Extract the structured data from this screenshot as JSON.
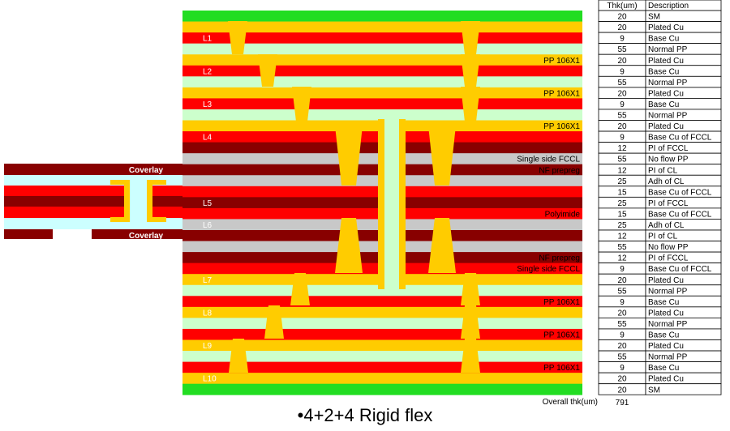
{
  "colors": {
    "sm": "#22dd22",
    "plated": "#ffcc00",
    "base": "#ff0000",
    "pp": "#ccffcc",
    "pi": "#880000",
    "nf": "#c8c8c8",
    "via": "#ffcc00",
    "flex_bg": "#ccffff",
    "grid": "#000000"
  },
  "table": {
    "header_thk": "Thk(um)",
    "header_desc": "Description",
    "rows": [
      {
        "thk": "20",
        "desc": "SM"
      },
      {
        "thk": "20",
        "desc": "Plated Cu"
      },
      {
        "thk": "9",
        "desc": "Base Cu"
      },
      {
        "thk": "55",
        "desc": "Normal PP"
      },
      {
        "thk": "20",
        "desc": "Plated Cu"
      },
      {
        "thk": "9",
        "desc": "Base Cu"
      },
      {
        "thk": "55",
        "desc": "Normal PP"
      },
      {
        "thk": "20",
        "desc": "Plated Cu"
      },
      {
        "thk": "9",
        "desc": "Base Cu"
      },
      {
        "thk": "55",
        "desc": "Normal PP"
      },
      {
        "thk": "20",
        "desc": "Plated Cu"
      },
      {
        "thk": "9",
        "desc": "Base Cu of FCCL"
      },
      {
        "thk": "12",
        "desc": "PI of FCCL"
      },
      {
        "thk": "55",
        "desc": "No flow PP"
      },
      {
        "thk": "12",
        "desc": "PI of CL"
      },
      {
        "thk": "25",
        "desc": "Adh of CL"
      },
      {
        "thk": "15",
        "desc": "Base Cu of FCCL"
      },
      {
        "thk": "25",
        "desc": "PI of FCCL"
      },
      {
        "thk": "15",
        "desc": "Base Cu of FCCL"
      },
      {
        "thk": "25",
        "desc": "Adh of CL"
      },
      {
        "thk": "12",
        "desc": "PI of CL"
      },
      {
        "thk": "55",
        "desc": "No flow PP"
      },
      {
        "thk": "12",
        "desc": "PI of FCCL"
      },
      {
        "thk": "9",
        "desc": "Base Cu of FCCL"
      },
      {
        "thk": "20",
        "desc": "Plated Cu"
      },
      {
        "thk": "55",
        "desc": "Normal PP"
      },
      {
        "thk": "9",
        "desc": "Base Cu"
      },
      {
        "thk": "20",
        "desc": "Plated Cu"
      },
      {
        "thk": "55",
        "desc": "Normal PP"
      },
      {
        "thk": "9",
        "desc": "Base Cu"
      },
      {
        "thk": "20",
        "desc": "Plated Cu"
      },
      {
        "thk": "55",
        "desc": "Normal PP"
      },
      {
        "thk": "9",
        "desc": "Base Cu"
      },
      {
        "thk": "20",
        "desc": "Plated Cu"
      },
      {
        "thk": "20",
        "desc": "SM"
      }
    ],
    "overall_label": "Overall thk(um)",
    "overall_value": "791"
  },
  "layer_labels": [
    {
      "text": "L1",
      "row": 2
    },
    {
      "text": "L2",
      "row": 5
    },
    {
      "text": "L3",
      "row": 8
    },
    {
      "text": "L4",
      "row": 11
    },
    {
      "text": "L5",
      "row": 17
    },
    {
      "text": "L6",
      "row": 19
    },
    {
      "text": "L7",
      "row": 24
    },
    {
      "text": "L8",
      "row": 27
    },
    {
      "text": "L9",
      "row": 30
    },
    {
      "text": "L10",
      "row": 33
    }
  ],
  "stack_labels": [
    {
      "text": "PP 106X1",
      "row": 4
    },
    {
      "text": "PP 106X1",
      "row": 7
    },
    {
      "text": "PP 106X1",
      "row": 10
    },
    {
      "text": "Single side FCCL",
      "row": 13
    },
    {
      "text": "NF prepreg",
      "row": 14
    },
    {
      "text": "Polyimide",
      "row": 18
    },
    {
      "text": "NF prepreg",
      "row": 22
    },
    {
      "text": "Single side FCCL",
      "row": 23
    },
    {
      "text": "PP 106X1",
      "row": 26
    },
    {
      "text": "PP 106X1",
      "row": 29
    },
    {
      "text": "PP 106X1",
      "row": 32
    }
  ],
  "coverlay_top": "Coverlay",
  "coverlay_bottom": "Coverlay",
  "caption": "•4+2+4 Rigid flex"
}
